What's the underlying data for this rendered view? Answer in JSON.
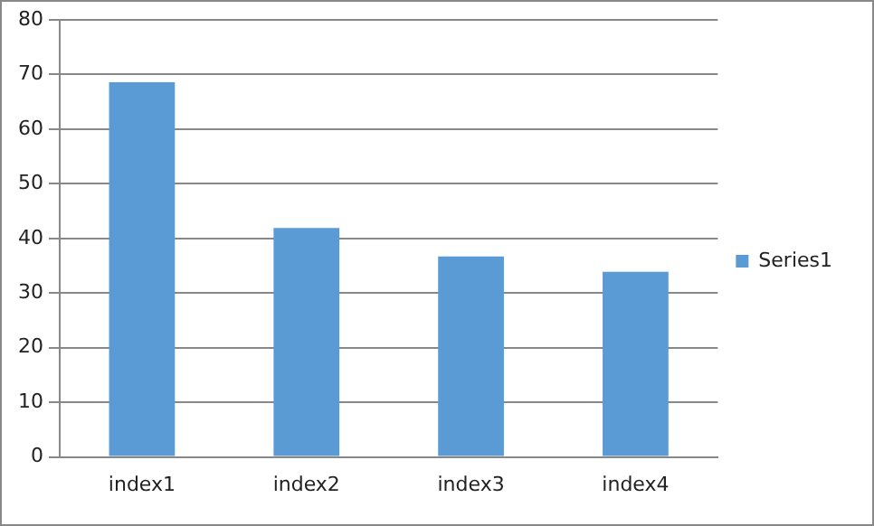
{
  "chart_data": {
    "type": "bar",
    "categories": [
      "index1",
      "index2",
      "index3",
      "index4"
    ],
    "series": [
      {
        "name": "Series1",
        "color": "#5b9bd5",
        "values": [
          68.6,
          41.9,
          36.7,
          33.9
        ]
      }
    ],
    "ylim": [
      0,
      80
    ],
    "yticks": [
      0,
      10,
      20,
      30,
      40,
      50,
      60,
      70,
      80
    ],
    "grid": "y",
    "legend": "right"
  }
}
